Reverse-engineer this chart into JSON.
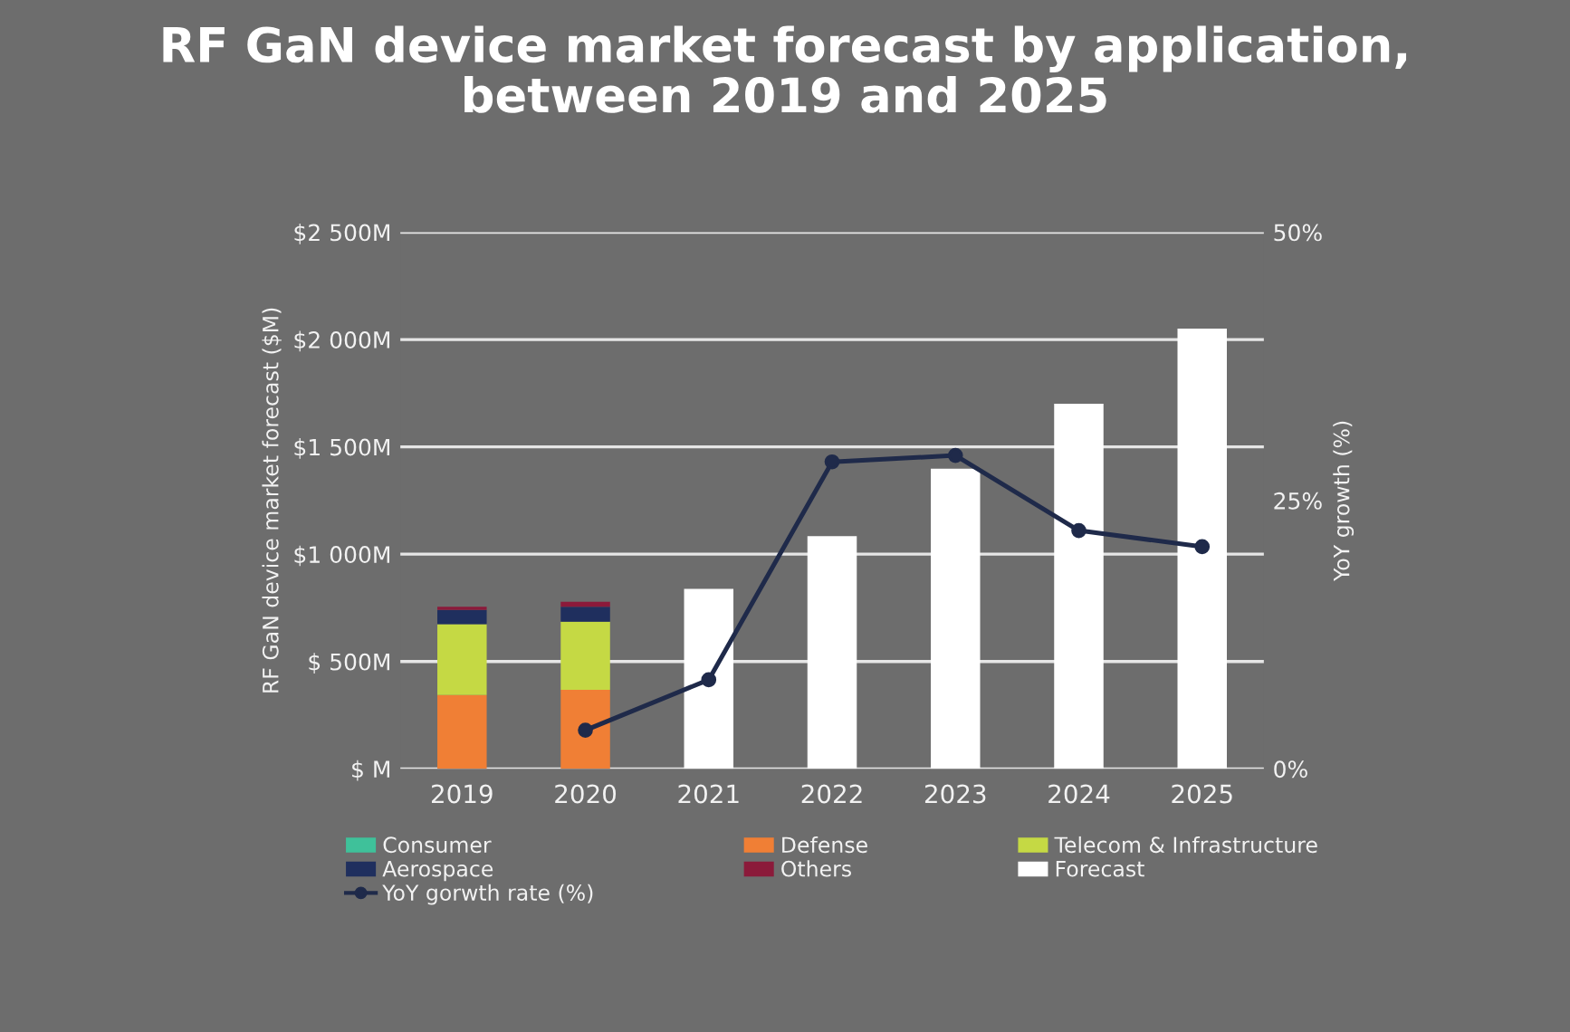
{
  "chart_data": {
    "type": "bar",
    "title": "RF GaN device market forecast by application,\nbetween 2019 and 2025",
    "ylabel": "RF GaN device market forecast ($M)",
    "y2label": "YoY growth (%)",
    "categories": [
      "2019",
      "2020",
      "2021",
      "2022",
      "2023",
      "2024",
      "2025"
    ],
    "stacked": true,
    "series": [
      {
        "name": "Consumer",
        "color": "#3fc19a",
        "values": [
          null,
          null,
          null,
          null,
          null,
          null,
          null
        ]
      },
      {
        "name": "Defense",
        "color": "#f07f35",
        "values": [
          344,
          368,
          null,
          null,
          null,
          null,
          null
        ]
      },
      {
        "name": "Telecom & Infrastructure",
        "color": "#c5d944",
        "values": [
          330,
          318,
          null,
          null,
          null,
          null,
          null
        ]
      },
      {
        "name": "Aerospace",
        "color": "#1f2f5e",
        "values": [
          66,
          69,
          null,
          null,
          null,
          null,
          null
        ]
      },
      {
        "name": "Others",
        "color": "#8b1a3a",
        "values": [
          15,
          23,
          null,
          null,
          null,
          null,
          null
        ]
      },
      {
        "name": "Forecast",
        "color": "#ffffff",
        "values": [
          null,
          null,
          838,
          1084,
          1398,
          1701,
          2051
        ]
      },
      {
        "name": "YoY gorwth rate (%)",
        "color": "#1f2a4a",
        "type": "line",
        "axis": "y2",
        "marker": "circle",
        "values": [
          null,
          3.6,
          8.3,
          28.6,
          29.2,
          22.2,
          20.7
        ]
      }
    ],
    "ylim": [
      0,
      2500
    ],
    "yticks": [
      {
        "value": 0,
        "label": "$ M"
      },
      {
        "value": 500,
        "label": "$ 500M"
      },
      {
        "value": 1000,
        "label": "$1 000M"
      },
      {
        "value": 1500,
        "label": "$1 500M"
      },
      {
        "value": 2000,
        "label": "$2 000M"
      },
      {
        "value": 2500,
        "label": "$2 500M"
      }
    ],
    "y2lim": [
      0,
      50
    ],
    "y2ticks": [
      {
        "value": 0,
        "label": "0%"
      },
      {
        "value": 25,
        "label": "25%"
      },
      {
        "value": 50,
        "label": "50%"
      }
    ],
    "grid": "y",
    "legend": "bottom"
  }
}
